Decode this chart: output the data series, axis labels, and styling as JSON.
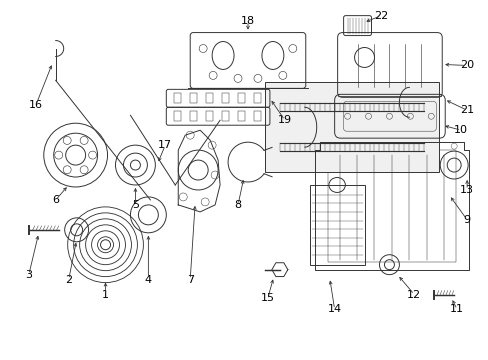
{
  "background_color": "#ffffff",
  "border_color": "#cccccc",
  "line_color": "#333333",
  "label_color": "#000000",
  "fig_width": 4.89,
  "fig_height": 3.6,
  "dpi": 100
}
